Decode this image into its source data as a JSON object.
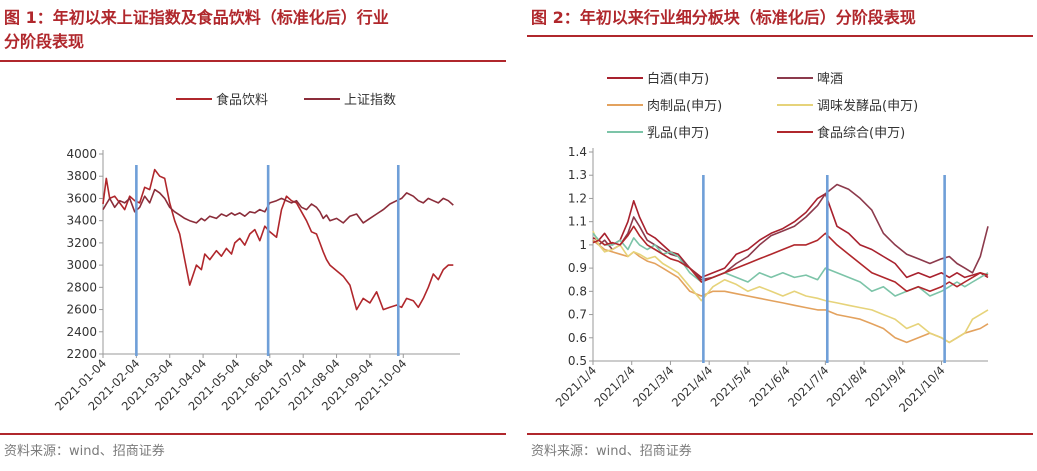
{
  "chart_data": [
    {
      "type": "line",
      "title": "图 1：年初以来上证指数及食品饮料（标准化后）行业分阶段表现",
      "legend_position": "top",
      "x_tick_labels": [
        "2021-01-04",
        "2021-02-04",
        "2021-03-04",
        "2021-04-04",
        "2021-05-04",
        "2021-06-04",
        "2021-07-04",
        "2021-08-04",
        "2021-09-04",
        "2021-10-04"
      ],
      "x_range": [
        0,
        10.7
      ],
      "y_ticks": [
        2200,
        2400,
        2600,
        2800,
        3000,
        3200,
        3400,
        3600,
        3800,
        4000
      ],
      "ylim": [
        2200,
        4000
      ],
      "grid": false,
      "phase_markers": [
        1.0,
        4.95,
        8.85
      ],
      "series": [
        {
          "name": "食品饮料",
          "color": "#b0272c",
          "x": [
            0,
            0.1,
            0.2,
            0.35,
            0.5,
            0.65,
            0.8,
            0.95,
            1.1,
            1.25,
            1.4,
            1.55,
            1.7,
            1.85,
            2.0,
            2.15,
            2.3,
            2.45,
            2.6,
            2.8,
            2.95,
            3.05,
            3.2,
            3.4,
            3.55,
            3.7,
            3.85,
            3.95,
            4.1,
            4.25,
            4.4,
            4.55,
            4.7,
            4.85,
            5.0,
            5.2,
            5.35,
            5.5,
            5.65,
            5.8,
            5.95,
            6.1,
            6.25,
            6.4,
            6.5,
            6.6,
            6.7,
            6.8,
            7.0,
            7.2,
            7.4,
            7.6,
            7.8,
            8.0,
            8.2,
            8.4,
            8.6,
            8.8,
            8.95,
            9.1,
            9.3,
            9.45,
            9.6,
            9.75,
            9.9,
            10.05,
            10.2,
            10.35,
            10.5
          ],
          "y": [
            3550,
            3780,
            3600,
            3620,
            3560,
            3500,
            3620,
            3580,
            3560,
            3700,
            3680,
            3860,
            3800,
            3780,
            3560,
            3400,
            3280,
            3050,
            2820,
            3000,
            2960,
            3100,
            3050,
            3130,
            3080,
            3150,
            3100,
            3200,
            3240,
            3180,
            3280,
            3320,
            3220,
            3350,
            3300,
            3250,
            3500,
            3620,
            3580,
            3560,
            3480,
            3400,
            3300,
            3280,
            3200,
            3120,
            3050,
            3000,
            2950,
            2900,
            2820,
            2600,
            2700,
            2660,
            2760,
            2600,
            2620,
            2640,
            2620,
            2700,
            2680,
            2620,
            2700,
            2800,
            2920,
            2870,
            2960,
            3000,
            3000
          ]
        },
        {
          "name": "上证指数",
          "color": "#8b2d3a",
          "x": [
            0,
            0.1,
            0.2,
            0.35,
            0.5,
            0.65,
            0.8,
            0.95,
            1.1,
            1.25,
            1.4,
            1.55,
            1.7,
            1.85,
            2.0,
            2.15,
            2.3,
            2.45,
            2.6,
            2.8,
            2.95,
            3.05,
            3.2,
            3.4,
            3.55,
            3.7,
            3.85,
            3.95,
            4.1,
            4.25,
            4.4,
            4.55,
            4.7,
            4.85,
            5.0,
            5.2,
            5.35,
            5.5,
            5.65,
            5.8,
            5.95,
            6.1,
            6.25,
            6.4,
            6.5,
            6.6,
            6.7,
            6.8,
            7.0,
            7.2,
            7.4,
            7.6,
            7.8,
            8.0,
            8.2,
            8.4,
            8.6,
            8.8,
            8.95,
            9.1,
            9.3,
            9.45,
            9.6,
            9.75,
            9.9,
            10.05,
            10.2,
            10.35,
            10.5
          ],
          "y": [
            3500,
            3550,
            3600,
            3520,
            3580,
            3560,
            3600,
            3480,
            3520,
            3620,
            3560,
            3680,
            3650,
            3600,
            3520,
            3480,
            3450,
            3420,
            3400,
            3380,
            3420,
            3400,
            3440,
            3420,
            3460,
            3440,
            3470,
            3450,
            3470,
            3440,
            3480,
            3470,
            3500,
            3480,
            3560,
            3580,
            3600,
            3580,
            3560,
            3580,
            3520,
            3500,
            3550,
            3520,
            3480,
            3420,
            3450,
            3400,
            3420,
            3380,
            3440,
            3460,
            3380,
            3420,
            3460,
            3500,
            3550,
            3580,
            3600,
            3650,
            3620,
            3580,
            3560,
            3600,
            3580,
            3560,
            3600,
            3580,
            3540
          ]
        }
      ]
    },
    {
      "type": "line",
      "title": "图 2：年初以来行业细分板块（标准化后）分阶段表现",
      "legend_position": "top",
      "x_tick_labels": [
        "2021/1/4",
        "2021/2/4",
        "2021/3/4",
        "2021/4/4",
        "2021/5/4",
        "2021/6/4",
        "2021/7/4",
        "2021/8/4",
        "2021/9/4",
        "2021/10/4"
      ],
      "x_range": [
        0,
        10.2
      ],
      "y_ticks": [
        0.5,
        0.6,
        0.7,
        0.8,
        0.9,
        1,
        1.1,
        1.2,
        1.3,
        1.4
      ],
      "ylim": [
        0.5,
        1.4
      ],
      "grid": false,
      "phase_markers": [
        2.85,
        6.05,
        9.08
      ],
      "series": [
        {
          "name": "白酒(申万)",
          "color": "#a8212e",
          "x": [
            0,
            0.15,
            0.3,
            0.5,
            0.7,
            0.9,
            1.05,
            1.2,
            1.4,
            1.6,
            1.8,
            2.0,
            2.2,
            2.5,
            2.8,
            3.1,
            3.4,
            3.7,
            4.0,
            4.3,
            4.6,
            4.9,
            5.2,
            5.5,
            5.8,
            6.0,
            6.3,
            6.6,
            6.9,
            7.2,
            7.5,
            7.8,
            8.1,
            8.4,
            8.7,
            9.0,
            9.2,
            9.4,
            9.6,
            9.8,
            10.0,
            10.2
          ],
          "y": [
            1.03,
            1.02,
            1.05,
            1.0,
            1.02,
            1.1,
            1.19,
            1.12,
            1.05,
            1.03,
            1.0,
            0.97,
            0.96,
            0.9,
            0.86,
            0.88,
            0.9,
            0.96,
            0.98,
            1.02,
            1.05,
            1.07,
            1.1,
            1.14,
            1.2,
            1.22,
            1.08,
            1.05,
            1.0,
            0.98,
            0.95,
            0.92,
            0.86,
            0.88,
            0.86,
            0.88,
            0.86,
            0.88,
            0.86,
            0.87,
            0.88,
            0.86
          ]
        },
        {
          "name": "啤酒",
          "color": "#8c3a4c",
          "x": [
            0,
            0.15,
            0.3,
            0.5,
            0.7,
            0.9,
            1.05,
            1.2,
            1.4,
            1.6,
            1.8,
            2.0,
            2.2,
            2.5,
            2.8,
            3.1,
            3.4,
            3.7,
            4.0,
            4.3,
            4.6,
            4.9,
            5.2,
            5.5,
            5.8,
            6.0,
            6.3,
            6.6,
            6.9,
            7.2,
            7.5,
            7.8,
            8.1,
            8.4,
            8.7,
            9.0,
            9.2,
            9.4,
            9.6,
            9.8,
            10.0,
            10.2
          ],
          "y": [
            1.02,
            1.0,
            1.02,
            0.98,
            1.0,
            1.05,
            1.12,
            1.08,
            1.02,
            1.0,
            0.98,
            0.96,
            0.95,
            0.9,
            0.85,
            0.86,
            0.88,
            0.92,
            0.95,
            1.0,
            1.04,
            1.06,
            1.08,
            1.12,
            1.17,
            1.22,
            1.26,
            1.24,
            1.2,
            1.15,
            1.05,
            1.0,
            0.96,
            0.94,
            0.92,
            0.94,
            0.95,
            0.92,
            0.9,
            0.88,
            0.95,
            1.08
          ]
        },
        {
          "name": "肉制品(申万)",
          "color": "#e3a25e",
          "x": [
            0,
            0.15,
            0.3,
            0.5,
            0.7,
            0.9,
            1.05,
            1.2,
            1.4,
            1.6,
            1.8,
            2.0,
            2.2,
            2.5,
            2.8,
            3.1,
            3.4,
            3.7,
            4.0,
            4.3,
            4.6,
            4.9,
            5.2,
            5.5,
            5.8,
            6.0,
            6.3,
            6.6,
            6.9,
            7.2,
            7.5,
            7.8,
            8.1,
            8.4,
            8.7,
            9.0,
            9.2,
            9.4,
            9.6,
            9.8,
            10.0,
            10.2
          ],
          "y": [
            1.02,
            1.0,
            0.98,
            0.97,
            0.96,
            0.95,
            0.97,
            0.95,
            0.93,
            0.92,
            0.9,
            0.88,
            0.86,
            0.8,
            0.78,
            0.8,
            0.8,
            0.79,
            0.78,
            0.77,
            0.76,
            0.75,
            0.74,
            0.73,
            0.72,
            0.72,
            0.7,
            0.69,
            0.68,
            0.66,
            0.64,
            0.6,
            0.58,
            0.6,
            0.62,
            0.6,
            0.58,
            0.6,
            0.62,
            0.63,
            0.64,
            0.66
          ]
        },
        {
          "name": "调味发酵品(申万)",
          "color": "#e6d37a",
          "x": [
            0,
            0.15,
            0.3,
            0.5,
            0.7,
            0.9,
            1.05,
            1.2,
            1.4,
            1.6,
            1.8,
            2.0,
            2.2,
            2.5,
            2.8,
            3.1,
            3.4,
            3.7,
            4.0,
            4.3,
            4.6,
            4.9,
            5.2,
            5.5,
            5.8,
            6.0,
            6.3,
            6.6,
            6.9,
            7.2,
            7.5,
            7.8,
            8.1,
            8.4,
            8.7,
            9.0,
            9.2,
            9.4,
            9.6,
            9.8,
            10.0,
            10.2
          ],
          "y": [
            1.06,
            1.0,
            0.97,
            0.98,
            1.0,
            0.95,
            0.97,
            0.96,
            0.94,
            0.95,
            0.92,
            0.9,
            0.88,
            0.82,
            0.76,
            0.82,
            0.85,
            0.83,
            0.8,
            0.82,
            0.8,
            0.78,
            0.8,
            0.78,
            0.77,
            0.76,
            0.75,
            0.74,
            0.73,
            0.72,
            0.7,
            0.68,
            0.64,
            0.66,
            0.62,
            0.6,
            0.58,
            0.6,
            0.62,
            0.68,
            0.7,
            0.72
          ]
        },
        {
          "name": "乳品(申万)",
          "color": "#7cc4a8",
          "x": [
            0,
            0.15,
            0.3,
            0.5,
            0.7,
            0.9,
            1.05,
            1.2,
            1.4,
            1.6,
            1.8,
            2.0,
            2.2,
            2.5,
            2.8,
            3.1,
            3.4,
            3.7,
            4.0,
            4.3,
            4.6,
            4.9,
            5.2,
            5.5,
            5.8,
            6.0,
            6.3,
            6.6,
            6.9,
            7.2,
            7.5,
            7.8,
            8.1,
            8.4,
            8.7,
            9.0,
            9.2,
            9.4,
            9.6,
            9.8,
            10.0,
            10.2
          ],
          "y": [
            1.05,
            1.02,
            1.0,
            1.0,
            1.02,
            0.98,
            1.03,
            1.0,
            0.98,
            1.0,
            0.96,
            0.97,
            0.95,
            0.88,
            0.84,
            0.86,
            0.88,
            0.86,
            0.84,
            0.88,
            0.86,
            0.88,
            0.86,
            0.87,
            0.85,
            0.9,
            0.88,
            0.86,
            0.84,
            0.8,
            0.82,
            0.78,
            0.8,
            0.82,
            0.78,
            0.8,
            0.82,
            0.84,
            0.82,
            0.84,
            0.86,
            0.88
          ]
        },
        {
          "name": "食品综合(申万)",
          "color": "#b0272c",
          "x": [
            0,
            0.15,
            0.3,
            0.5,
            0.7,
            0.9,
            1.05,
            1.2,
            1.4,
            1.6,
            1.8,
            2.0,
            2.2,
            2.5,
            2.8,
            3.1,
            3.4,
            3.7,
            4.0,
            4.3,
            4.6,
            4.9,
            5.2,
            5.5,
            5.8,
            6.0,
            6.3,
            6.6,
            6.9,
            7.2,
            7.5,
            7.8,
            8.1,
            8.4,
            8.7,
            9.0,
            9.2,
            9.4,
            9.6,
            9.8,
            10.0,
            10.2
          ],
          "y": [
            1.01,
            1.02,
            1.0,
            1.01,
            1.0,
            1.04,
            1.08,
            1.04,
            1.0,
            0.98,
            0.96,
            0.94,
            0.93,
            0.9,
            0.84,
            0.86,
            0.88,
            0.9,
            0.92,
            0.94,
            0.96,
            0.98,
            1.0,
            1.0,
            1.02,
            1.05,
            1.0,
            0.96,
            0.92,
            0.88,
            0.86,
            0.84,
            0.8,
            0.82,
            0.8,
            0.82,
            0.84,
            0.82,
            0.84,
            0.86,
            0.88,
            0.87
          ]
        }
      ]
    }
  ],
  "figure1": {
    "title_line1": "图 1：年初以来上证指数及食品饮料（标准化后）行业",
    "title_line2": "分阶段表现",
    "source": "资料来源：wind、招商证券"
  },
  "figure2": {
    "title_line1": "图 2：年初以来行业细分板块（标准化后）分阶段表现",
    "source": "资料来源：wind、招商证券"
  }
}
